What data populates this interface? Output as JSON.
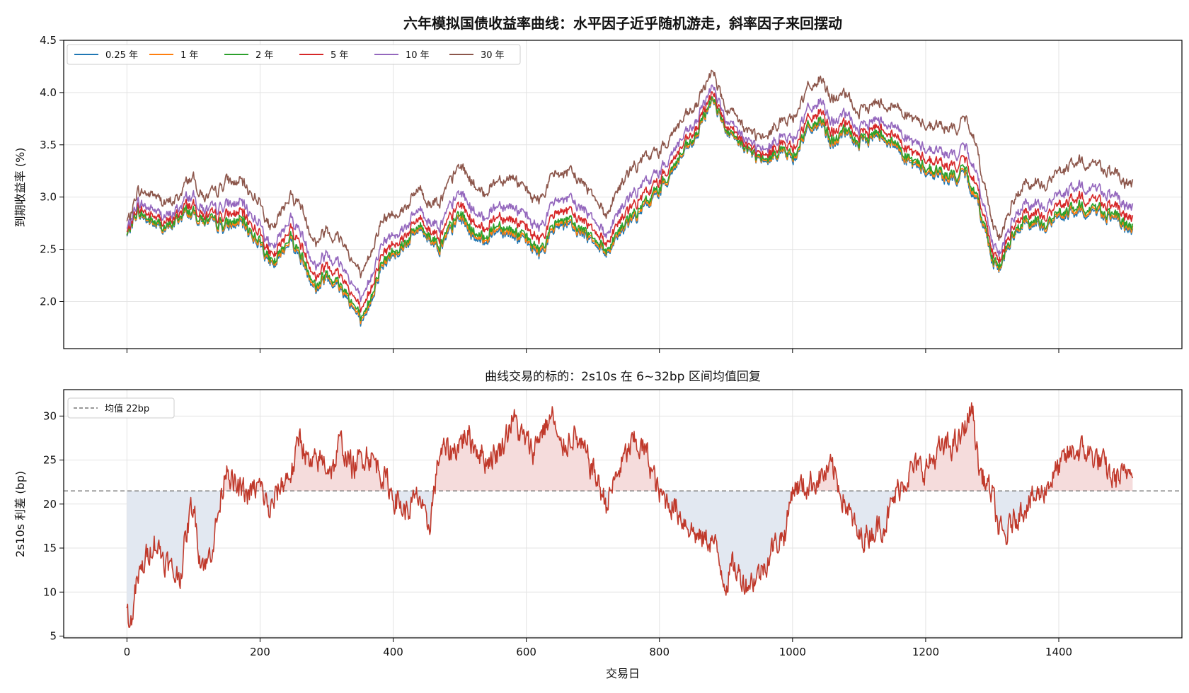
{
  "figure": {
    "title": "六年模拟国债收益率曲线：水平因子近乎随机游走，斜率因子来回摆动",
    "xlabel": "交易日"
  },
  "chart_data": [
    {
      "type": "line",
      "title": "六年模拟国债收益率曲线：水平因子近乎随机游走，斜率因子来回摆动",
      "ylabel": "到期收益率 (%)",
      "xlim": [
        -95,
        1585
      ],
      "ylim": [
        1.55,
        4.5
      ],
      "xticks": [
        0,
        200,
        400,
        600,
        800,
        1000,
        1200,
        1400
      ],
      "yticks": [
        2.0,
        2.5,
        3.0,
        3.5,
        4.0,
        4.5
      ],
      "ytick_labels": [
        "2.0",
        "2.5",
        "3.0",
        "3.5",
        "4.0",
        "4.5"
      ],
      "grid": true,
      "legend_position": "top-left",
      "level_anchor_x": [
        0,
        15,
        35,
        60,
        90,
        120,
        150,
        170,
        200,
        220,
        245,
        270,
        285,
        300,
        330,
        355,
        380,
        400,
        420,
        440,
        470,
        500,
        530,
        560,
        590,
        620,
        650,
        700,
        720,
        740,
        780,
        800,
        830,
        855,
        880,
        900,
        930,
        960,
        980,
        1000,
        1020,
        1040,
        1060,
        1080,
        1100,
        1130,
        1160,
        1180,
        1200,
        1240,
        1260,
        1280,
        1300,
        1310,
        1330,
        1350,
        1380,
        1400,
        1430,
        1460,
        1480,
        1510
      ],
      "level_anchor_y": [
        2.62,
        2.85,
        2.75,
        2.68,
        2.85,
        2.75,
        2.7,
        2.75,
        2.55,
        2.3,
        2.6,
        2.3,
        2.1,
        2.25,
        2.05,
        1.75,
        2.3,
        2.45,
        2.55,
        2.7,
        2.5,
        2.8,
        2.55,
        2.7,
        2.6,
        2.45,
        2.75,
        2.6,
        2.45,
        2.65,
        2.9,
        3.05,
        3.35,
        3.55,
        3.95,
        3.6,
        3.45,
        3.3,
        3.45,
        3.35,
        3.6,
        3.7,
        3.5,
        3.6,
        3.5,
        3.6,
        3.45,
        3.3,
        3.25,
        3.15,
        3.2,
        2.9,
        2.4,
        2.3,
        2.6,
        2.75,
        2.7,
        2.8,
        2.85,
        2.85,
        2.8,
        2.65
      ],
      "series": [
        {
          "name": "0.25 年",
          "color": "#1f77b4",
          "slope_k": 0.0
        },
        {
          "name": "1 年",
          "color": "#ff7f0e",
          "slope_k": 0.05
        },
        {
          "name": "2 年",
          "color": "#2ca02c",
          "slope_k": 0.12
        },
        {
          "name": "5 年",
          "color": "#d62728",
          "slope_k": 0.33
        },
        {
          "name": "10 年",
          "color": "#9467bd",
          "slope_k": 0.6
        },
        {
          "name": "30 年",
          "color": "#8c564b",
          "slope_k": 1.2
        }
      ]
    },
    {
      "type": "area",
      "title": "曲线交易的标的：2s10s 在 6~32bp 区间均值回复",
      "ylabel": "2s10s 利差 (bp)",
      "xlabel": "交易日",
      "xlim": [
        -95,
        1585
      ],
      "ylim": [
        4.8,
        33
      ],
      "xticks": [
        0,
        200,
        400,
        600,
        800,
        1000,
        1200,
        1400
      ],
      "yticks": [
        5,
        10,
        15,
        20,
        25,
        30
      ],
      "grid": true,
      "legend_position": "top-left",
      "mean_label": "均值 22bp",
      "mean_value": 21.5,
      "line_color": "#c0392b",
      "above_fill": "#f5dcdc",
      "below_fill": "#e2e8f1",
      "mean_color": "#777777",
      "x": [
        0,
        5,
        15,
        30,
        40,
        55,
        70,
        80,
        95,
        100,
        110,
        120,
        130,
        140,
        150,
        160,
        180,
        200,
        215,
        230,
        250,
        260,
        275,
        290,
        310,
        320,
        340,
        360,
        380,
        400,
        420,
        440,
        450,
        455,
        470,
        490,
        510,
        520,
        540,
        560,
        580,
        590,
        610,
        620,
        640,
        650,
        670,
        700,
        720,
        740,
        760,
        780,
        800,
        820,
        840,
        860,
        880,
        900,
        910,
        930,
        950,
        970,
        990,
        1000,
        1020,
        1040,
        1060,
        1080,
        1100,
        1120,
        1140,
        1160,
        1180,
        1200,
        1220,
        1250,
        1270,
        1280,
        1300,
        1310,
        1320,
        1330,
        1350,
        1370,
        1400,
        1420,
        1440,
        1460,
        1480,
        1500,
        1510
      ],
      "values": [
        8,
        6,
        11,
        14,
        16,
        14,
        12,
        12,
        19,
        20,
        14,
        13,
        16,
        20,
        25,
        22,
        21,
        22,
        19,
        22,
        24,
        28,
        24,
        25,
        24,
        27,
        24,
        26,
        24,
        21,
        19,
        21,
        17,
        18,
        26,
        26,
        28,
        27,
        25,
        26,
        30,
        28,
        26,
        28,
        30,
        26,
        28,
        24,
        20,
        24,
        27,
        26,
        21,
        20,
        18,
        16,
        16,
        11,
        13,
        11,
        12,
        15,
        17,
        22,
        22,
        23,
        24,
        20,
        16,
        17,
        18,
        22,
        24,
        24,
        26,
        27,
        31,
        24,
        21,
        17,
        16,
        18,
        20,
        21,
        24,
        26,
        26,
        25,
        23,
        23,
        25
      ]
    }
  ]
}
